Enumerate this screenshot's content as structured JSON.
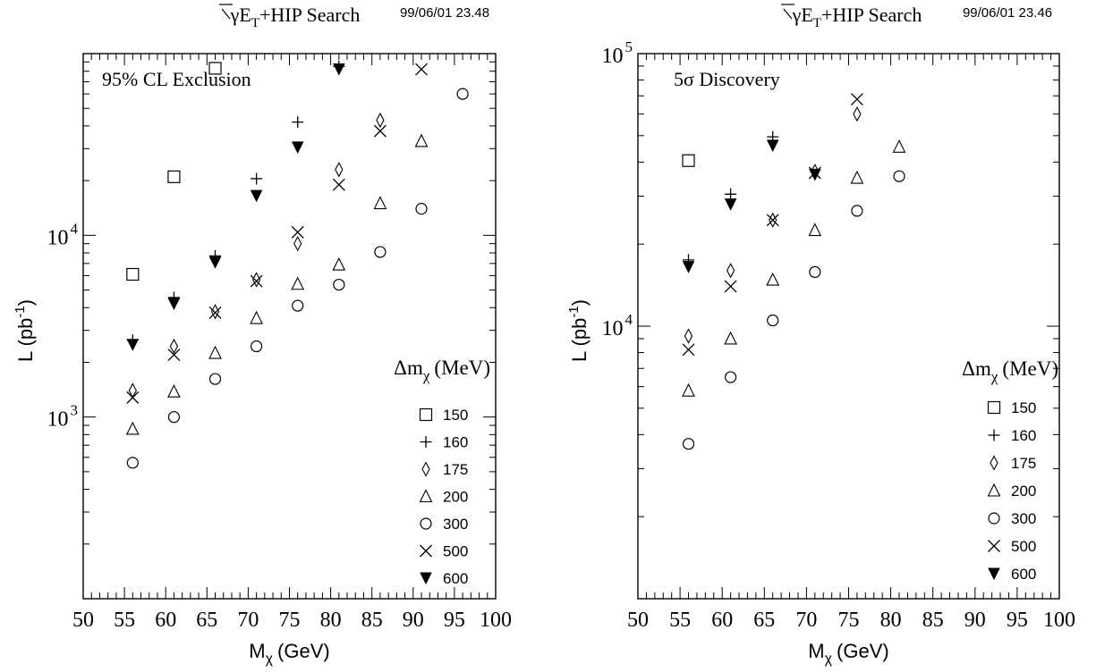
{
  "chart_data": [
    {
      "type": "scatter",
      "title": "γE_T+HIP Search",
      "title_main": "γE",
      "title_sub": "T",
      "title_rest": "+HIP Search",
      "timestamp": "99/06/01   23.48",
      "annotation": "95% CL Exclusion",
      "xlabel": "M",
      "xlabel_sub": "χ",
      "xlabel_unit": "(GeV)",
      "ylabel": "L (pb",
      "ylabel_sup": "-1",
      "ylabel_end": ")",
      "xlim": [
        50,
        100
      ],
      "ylim": [
        100,
        100000
      ],
      "yscale": "log",
      "x_ticks": [
        50,
        55,
        60,
        65,
        70,
        75,
        80,
        85,
        90,
        95,
        100
      ],
      "y_tick_labels": [
        {
          "value": 1000,
          "base": "10",
          "exp": "3"
        },
        {
          "value": 10000,
          "base": "10",
          "exp": "4"
        }
      ],
      "legend_title": "Δm",
      "legend_title_sub": "χ",
      "legend_title_unit": "(MeV)",
      "legend_placement": "bottom-right",
      "series": [
        {
          "name": "150",
          "marker": "square",
          "x": [
            56,
            61,
            66
          ],
          "y": [
            6100,
            21000,
            83000
          ]
        },
        {
          "name": "160",
          "marker": "plus",
          "x": [
            56,
            61,
            66,
            71,
            76,
            81
          ],
          "y": [
            2650,
            4550,
            7700,
            20500,
            42000,
            85000
          ]
        },
        {
          "name": "175",
          "marker": "diamond",
          "x": [
            56,
            61,
            66,
            71,
            76,
            81,
            86
          ],
          "y": [
            1400,
            2450,
            3800,
            5700,
            9000,
            23000,
            43000
          ]
        },
        {
          "name": "200",
          "marker": "triangle",
          "x": [
            56,
            61,
            66,
            71,
            76,
            81,
            86,
            91
          ],
          "y": [
            860,
            1380,
            2250,
            3500,
            5400,
            6900,
            15000,
            33000
          ]
        },
        {
          "name": "300",
          "marker": "circle",
          "x": [
            56,
            61,
            66,
            71,
            76,
            81,
            86,
            91,
            96
          ],
          "y": [
            560,
            1000,
            1620,
            2450,
            4100,
            5350,
            8100,
            14000,
            60000
          ]
        },
        {
          "name": "500",
          "marker": "cross",
          "x": [
            56,
            61,
            66,
            71,
            76,
            81,
            86,
            91
          ],
          "y": [
            1280,
            2200,
            3750,
            5600,
            10400,
            19000,
            37500,
            82000
          ]
        },
        {
          "name": "600",
          "marker": "triangle-down-filled",
          "x": [
            56,
            61,
            66,
            71,
            76,
            81
          ],
          "y": [
            2500,
            4200,
            7100,
            16500,
            30500,
            82000
          ]
        }
      ]
    },
    {
      "type": "scatter",
      "title": "γE_T+HIP Search",
      "title_main": "γE",
      "title_sub": "T",
      "title_rest": "+HIP Search",
      "timestamp": "99/06/01   23.46",
      "annotation": "5σ Discovery",
      "xlabel": "M",
      "xlabel_sub": "χ",
      "xlabel_unit": "(GeV)",
      "ylabel": "L (pb",
      "ylabel_sup": "-1",
      "ylabel_end": ")",
      "xlim": [
        50,
        100
      ],
      "ylim": [
        1000,
        100000
      ],
      "yscale": "log",
      "x_ticks": [
        50,
        55,
        60,
        65,
        70,
        75,
        80,
        85,
        90,
        95,
        100
      ],
      "y_tick_labels": [
        {
          "value": 10000,
          "base": "10",
          "exp": "4"
        },
        {
          "value": 100000,
          "base": "10",
          "exp": "5"
        }
      ],
      "legend_title": "Δm",
      "legend_title_sub": "χ",
      "legend_title_unit": "(MeV)",
      "legend_placement": "bottom-right",
      "series": [
        {
          "name": "150",
          "marker": "square",
          "x": [
            56
          ],
          "y": [
            40500
          ]
        },
        {
          "name": "160",
          "marker": "plus",
          "x": [
            56,
            61,
            66
          ],
          "y": [
            17500,
            30500,
            49500
          ]
        },
        {
          "name": "175",
          "marker": "diamond",
          "x": [
            56,
            61,
            66,
            71,
            76
          ],
          "y": [
            9200,
            16000,
            24500,
            37000,
            60000
          ]
        },
        {
          "name": "200",
          "marker": "triangle",
          "x": [
            56,
            61,
            66,
            71,
            76,
            81
          ],
          "y": [
            5800,
            9000,
            14800,
            22500,
            35000,
            45500
          ]
        },
        {
          "name": "300",
          "marker": "circle",
          "x": [
            56,
            61,
            66,
            71,
            76,
            81
          ],
          "y": [
            3700,
            6500,
            10500,
            15800,
            26500,
            35500
          ]
        },
        {
          "name": "500",
          "marker": "cross",
          "x": [
            56,
            61,
            66,
            71,
            76
          ],
          "y": [
            8200,
            14000,
            24500,
            36500,
            68000
          ]
        },
        {
          "name": "600",
          "marker": "triangle-down-filled",
          "x": [
            56,
            61,
            66,
            71
          ],
          "y": [
            16500,
            28000,
            46000,
            36000
          ]
        }
      ]
    }
  ]
}
